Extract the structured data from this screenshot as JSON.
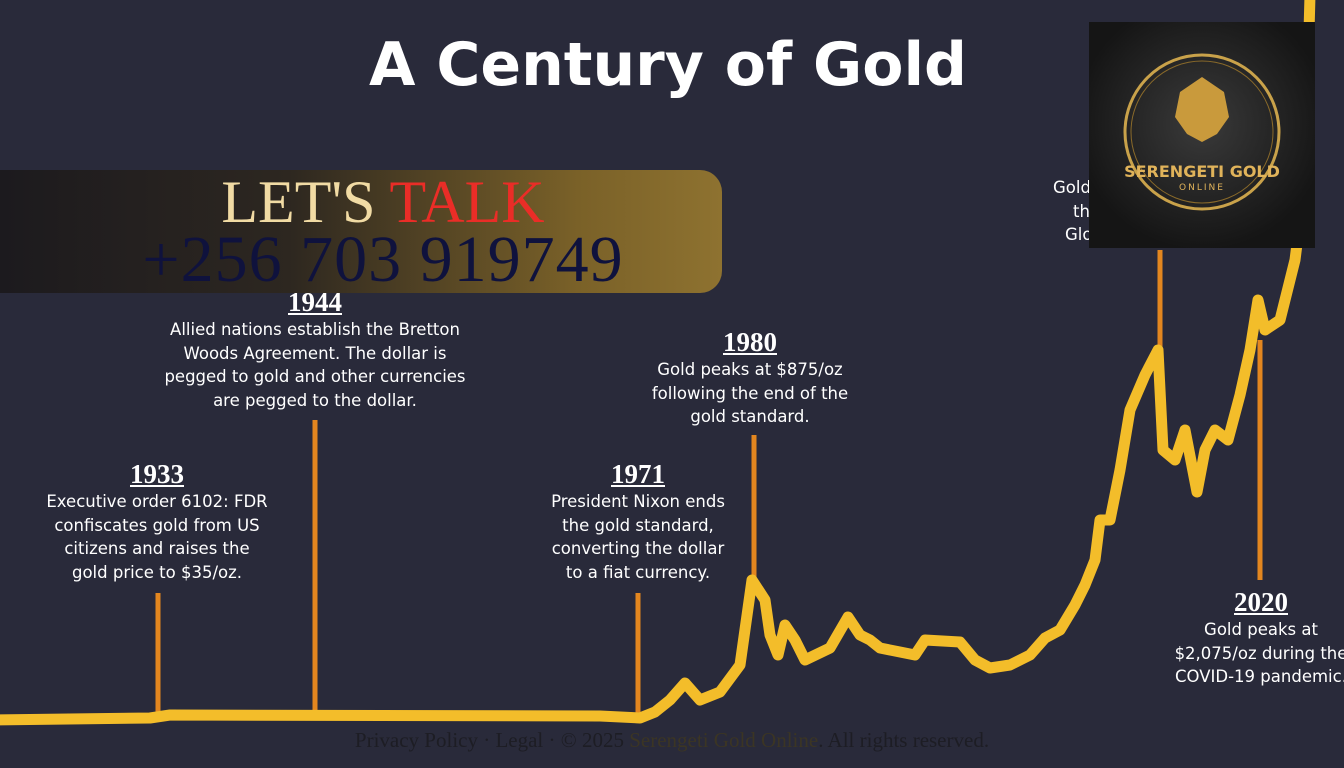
{
  "title": "A Century of Gold",
  "banner": {
    "lets": "LET'S",
    "talk": "TALK",
    "phone": "+256 703 919749"
  },
  "events": [
    {
      "year": "1933",
      "lines": [
        "Executive order 6102: FDR",
        "confiscates gold from US",
        "citizens and raises the",
        "gold price to $35/oz."
      ]
    },
    {
      "year": "1944",
      "lines": [
        "Allied nations establish the Bretton",
        "Woods Agreement. The dollar is",
        "pegged to gold and other currencies",
        "are pegged to the dollar."
      ]
    },
    {
      "year": "1971",
      "lines": [
        "President Nixon ends",
        "the gold standard,",
        "converting the dollar",
        "to a fiat currency."
      ]
    },
    {
      "year": "1980",
      "lines": [
        "Gold peaks at $875/oz",
        "following the end of the",
        "gold standard."
      ]
    },
    {
      "year": "2020",
      "lines": [
        "Gold peaks at",
        "$2,075/oz during the",
        "COVID-19 pandemic."
      ]
    }
  ],
  "hidden_event": {
    "lines": [
      "Gold",
      "th",
      "Glo"
    ]
  },
  "logo": {
    "name": "SERENGETI GOLD",
    "sub": "ONLINE"
  },
  "footer": {
    "before": "Privacy Policy · Legal · © 2025 ",
    "link": "Serengeti Gold Online",
    "after": ". All rights reserved."
  }
}
